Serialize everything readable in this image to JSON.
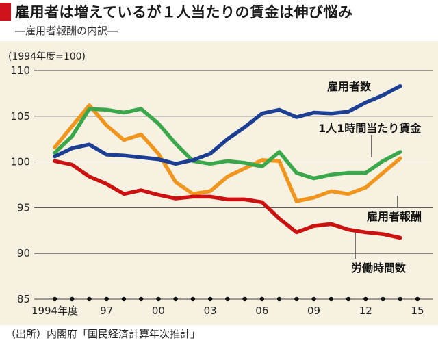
{
  "header": {
    "title": "雇用者は増えているが１人当たりの賃金は伸び悩み",
    "subtitle": "―雇用者報酬の内訳―",
    "accent_color": "#d0121b"
  },
  "footer": {
    "source": "（出所）内閣府「国民経済計算年次推計」"
  },
  "chart_data": {
    "type": "line",
    "unit_label": "(1994年度=100)",
    "ylim": [
      85,
      110
    ],
    "yticks": [
      85,
      90,
      95,
      100,
      105,
      110
    ],
    "x": [
      1994,
      1995,
      1996,
      1997,
      1998,
      1999,
      2000,
      2001,
      2002,
      2003,
      2004,
      2005,
      2006,
      2007,
      2008,
      2009,
      2010,
      2011,
      2012,
      2013,
      2014,
      2015
    ],
    "xticks": [
      {
        "x": 1994,
        "label": "1994年度"
      },
      {
        "x": 1997,
        "label": "97"
      },
      {
        "x": 2000,
        "label": "00"
      },
      {
        "x": 2003,
        "label": "03"
      },
      {
        "x": 2006,
        "label": "06"
      },
      {
        "x": 2009,
        "label": "09"
      },
      {
        "x": 2012,
        "label": "12"
      },
      {
        "x": 2015,
        "label": "15"
      }
    ],
    "grid": true,
    "background_color": "#f7f1e1",
    "series": [
      {
        "name": "雇用者数",
        "color": "#1c3f94",
        "values": [
          100.6,
          101.5,
          101.9,
          100.8,
          100.7,
          100.5,
          100.3,
          99.8,
          100.2,
          100.9,
          102.5,
          103.8,
          105.3,
          105.7,
          104.9,
          105.4,
          105.3,
          105.5,
          106.5,
          107.3,
          108.3,
          null
        ]
      },
      {
        "name": "1人1時間当たり賃金",
        "color": "#3aa84a",
        "values": [
          101.0,
          102.8,
          105.8,
          105.7,
          105.4,
          105.8,
          104.2,
          102.0,
          100.1,
          99.8,
          100.1,
          99.9,
          99.5,
          101.1,
          98.8,
          98.2,
          98.6,
          98.8,
          98.8,
          100.1,
          101.1,
          null
        ]
      },
      {
        "name": "雇用者報酬",
        "color": "#f0961e",
        "values": [
          101.6,
          103.9,
          106.2,
          104.0,
          102.4,
          103.0,
          100.9,
          97.8,
          96.5,
          96.8,
          98.4,
          99.3,
          100.2,
          100.1,
          95.7,
          96.1,
          96.8,
          96.5,
          97.2,
          98.8,
          100.4,
          null
        ]
      },
      {
        "name": "労働時間数",
        "color": "#cc1111",
        "values": [
          100.1,
          99.7,
          98.4,
          97.6,
          96.5,
          96.9,
          96.4,
          96.0,
          96.2,
          96.2,
          95.9,
          95.9,
          95.6,
          93.8,
          92.3,
          93.0,
          93.2,
          92.6,
          92.3,
          92.1,
          91.7,
          null
        ]
      }
    ]
  }
}
